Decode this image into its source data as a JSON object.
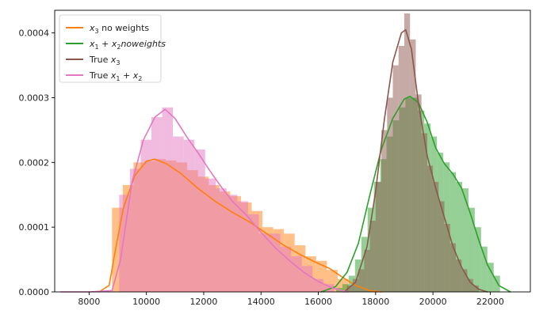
{
  "chart_data": {
    "type": "area",
    "title": "",
    "xlabel": "",
    "ylabel": "",
    "xlim": [
      6800,
      23400
    ],
    "ylim": [
      0,
      0.000435
    ],
    "grid": false,
    "legend_placement": "top-left",
    "x_ticks": [
      {
        "value": 8000,
        "label": "8000"
      },
      {
        "value": 10000,
        "label": "10000"
      },
      {
        "value": 12000,
        "label": "12000"
      },
      {
        "value": 14000,
        "label": "14000"
      },
      {
        "value": 16000,
        "label": "16000"
      },
      {
        "value": 18000,
        "label": "18000"
      },
      {
        "value": 20000,
        "label": "20000"
      },
      {
        "value": 22000,
        "label": "22000"
      }
    ],
    "y_ticks": [
      {
        "value": 0,
        "label": "0.0000"
      },
      {
        "value": 0.0001,
        "label": "0.0001"
      },
      {
        "value": 0.0002,
        "label": "0.0002"
      },
      {
        "value": 0.0003,
        "label": "0.0003"
      },
      {
        "value": 0.0004,
        "label": "0.0004"
      }
    ],
    "series": [
      {
        "key": "x3_no_weights",
        "legend": {
          "pre": "x",
          "sub": "3",
          "post": " no weights",
          "italic": true
        },
        "color": "#ff7f0e",
        "hist_opacity": 0.5,
        "bin_width": 375,
        "hist": [
          [
            8800,
            0.00013
          ],
          [
            9175,
            0.000165
          ],
          [
            9550,
            0.0002
          ],
          [
            9925,
            0.000202
          ],
          [
            10300,
            0.000205
          ],
          [
            10675,
            0.000203
          ],
          [
            11050,
            0.0002
          ],
          [
            11425,
            0.000188
          ],
          [
            11800,
            0.000178
          ],
          [
            12175,
            0.000165
          ],
          [
            12550,
            0.000155
          ],
          [
            12925,
            0.000148
          ],
          [
            13300,
            0.000138
          ],
          [
            13675,
            0.000125
          ],
          [
            14050,
            0.0001
          ],
          [
            14425,
            9.7e-05
          ],
          [
            14800,
            9e-05
          ],
          [
            15175,
            7.2e-05
          ],
          [
            15550,
            5.5e-05
          ],
          [
            15925,
            4.8e-05
          ],
          [
            16300,
            3.4e-05
          ],
          [
            16675,
            2e-05
          ]
        ],
        "kde": [
          [
            8350,
            0.0
          ],
          [
            8700,
            1e-05
          ],
          [
            8900,
            6e-05
          ],
          [
            9200,
            0.00013
          ],
          [
            9600,
            0.00018
          ],
          [
            10000,
            0.000202
          ],
          [
            10300,
            0.000205
          ],
          [
            10700,
            0.000198
          ],
          [
            11200,
            0.000183
          ],
          [
            11800,
            0.00016
          ],
          [
            12400,
            0.00014
          ],
          [
            13000,
            0.000123
          ],
          [
            13600,
            0.000108
          ],
          [
            14200,
            9e-05
          ],
          [
            14800,
            7.2e-05
          ],
          [
            15400,
            5.7e-05
          ],
          [
            15900,
            4.6e-05
          ],
          [
            16400,
            3.6e-05
          ],
          [
            16800,
            2.4e-05
          ],
          [
            17300,
            1e-05
          ],
          [
            17800,
            2e-06
          ],
          [
            18200,
            0.0
          ]
        ]
      },
      {
        "key": "x1x2_no_weights",
        "legend": {
          "pre": "x",
          "sub": "1",
          "mid": " + x",
          "sub2": "2",
          "post": "noweights",
          "italic": true
        },
        "color": "#2ca02c",
        "hist_opacity": 0.5,
        "bin_width": 220,
        "hist": [
          [
            16620,
            6e-06
          ],
          [
            16840,
            1.2e-05
          ],
          [
            17060,
            2.5e-05
          ],
          [
            17280,
            5e-05
          ],
          [
            17500,
            8.5e-05
          ],
          [
            17720,
            0.00013
          ],
          [
            17940,
            0.00017
          ],
          [
            18160,
            0.000205
          ],
          [
            18380,
            0.00024
          ],
          [
            18600,
            0.000265
          ],
          [
            18820,
            0.000285
          ],
          [
            19040,
            0.0003
          ],
          [
            19260,
            0.0003
          ],
          [
            19480,
            0.00028
          ],
          [
            19700,
            0.00026
          ],
          [
            19920,
            0.00024
          ],
          [
            20140,
            0.000215
          ],
          [
            20360,
            0.0002
          ],
          [
            20580,
            0.000185
          ],
          [
            20800,
            0.00017
          ],
          [
            21020,
            0.00016
          ],
          [
            21240,
            0.00013
          ],
          [
            21460,
            0.0001
          ],
          [
            21680,
            7e-05
          ],
          [
            21900,
            4.5e-05
          ],
          [
            22120,
            2.5e-05
          ]
        ],
        "kde": [
          [
            16100,
            0.0
          ],
          [
            16600,
            8e-06
          ],
          [
            17000,
            3e-05
          ],
          [
            17400,
            7.5e-05
          ],
          [
            17800,
            0.00015
          ],
          [
            18200,
            0.00022
          ],
          [
            18600,
            0.000268
          ],
          [
            19000,
            0.000298
          ],
          [
            19200,
            0.000302
          ],
          [
            19500,
            0.000292
          ],
          [
            19800,
            0.000262
          ],
          [
            20100,
            0.000222
          ],
          [
            20400,
            0.000198
          ],
          [
            20700,
            0.000182
          ],
          [
            21000,
            0.00016
          ],
          [
            21300,
            0.000122
          ],
          [
            21600,
            8e-05
          ],
          [
            21900,
            4.2e-05
          ],
          [
            22300,
            1e-05
          ],
          [
            22700,
            0.0
          ]
        ]
      },
      {
        "key": "true_x3",
        "legend": {
          "pre": "True ",
          "math": "x",
          "sub": "3"
        },
        "color": "#8c564b",
        "hist_opacity": 0.5,
        "bin_width": 200,
        "hist": [
          [
            17000,
            1e-05
          ],
          [
            17200,
            2e-05
          ],
          [
            17400,
            3.5e-05
          ],
          [
            17600,
            6.5e-05
          ],
          [
            17800,
            0.00011
          ],
          [
            18000,
            0.00017
          ],
          [
            18200,
            0.00025
          ],
          [
            18400,
            0.0003
          ],
          [
            18600,
            0.00035
          ],
          [
            18800,
            0.00038
          ],
          [
            19000,
            0.00043
          ],
          [
            19200,
            0.00039
          ],
          [
            19400,
            0.000305
          ],
          [
            19600,
            0.000245
          ],
          [
            19800,
            0.000195
          ],
          [
            20000,
            0.00017
          ],
          [
            20200,
            0.00014
          ],
          [
            20400,
            0.000105
          ],
          [
            20600,
            7.5e-05
          ],
          [
            20800,
            5e-05
          ],
          [
            21000,
            3.5e-05
          ],
          [
            21200,
            2e-05
          ],
          [
            21400,
            1e-05
          ]
        ],
        "kde": [
          [
            16900,
            0.0
          ],
          [
            17300,
            1.5e-05
          ],
          [
            17700,
            7e-05
          ],
          [
            18000,
            0.000155
          ],
          [
            18300,
            0.000265
          ],
          [
            18600,
            0.000355
          ],
          [
            18900,
            0.0004
          ],
          [
            19050,
            0.000405
          ],
          [
            19250,
            0.000375
          ],
          [
            19500,
            0.00029
          ],
          [
            19800,
            0.00021
          ],
          [
            20100,
            0.00016
          ],
          [
            20400,
            0.000115
          ],
          [
            20700,
            7e-05
          ],
          [
            21000,
            3.8e-05
          ],
          [
            21300,
            1.5e-05
          ],
          [
            21600,
            4e-06
          ],
          [
            21900,
            0.0
          ]
        ]
      },
      {
        "key": "true_x1x2",
        "legend": {
          "pre": "True ",
          "math": "x",
          "sub": "1",
          "mid": " + x",
          "sub2": "2"
        },
        "color": "#e377c2",
        "hist_opacity": 0.5,
        "bin_width": 375,
        "hist": [
          [
            9050,
            0.00015
          ],
          [
            9425,
            0.00019
          ],
          [
            9800,
            0.000235
          ],
          [
            10175,
            0.00027
          ],
          [
            10550,
            0.000285
          ],
          [
            10925,
            0.00024
          ],
          [
            11300,
            0.000235
          ],
          [
            11675,
            0.00022
          ],
          [
            12050,
            0.000175
          ],
          [
            12425,
            0.00016
          ],
          [
            12800,
            0.00015
          ],
          [
            13175,
            0.00014
          ],
          [
            13550,
            0.00012
          ],
          [
            13925,
            9e-05
          ],
          [
            14300,
            9e-05
          ],
          [
            14675,
            7e-05
          ],
          [
            15050,
            5.5e-05
          ],
          [
            15425,
            4e-05
          ],
          [
            15800,
            2e-05
          ],
          [
            16175,
            1.2e-05
          ]
        ],
        "kde": [
          [
            7000,
            0.0
          ],
          [
            8000,
            0.0
          ],
          [
            8800,
            2e-06
          ],
          [
            9100,
            5e-05
          ],
          [
            9500,
            0.00017
          ],
          [
            9900,
            0.000235
          ],
          [
            10300,
            0.00027
          ],
          [
            10650,
            0.000282
          ],
          [
            11000,
            0.000268
          ],
          [
            11400,
            0.00024
          ],
          [
            11800,
            0.000215
          ],
          [
            12200,
            0.000188
          ],
          [
            12600,
            0.000163
          ],
          [
            13000,
            0.00014
          ],
          [
            13500,
            0.000118
          ],
          [
            14000,
            9.2e-05
          ],
          [
            14500,
            6.8e-05
          ],
          [
            15000,
            4.8e-05
          ],
          [
            15500,
            3e-05
          ],
          [
            16000,
            1.6e-05
          ],
          [
            16500,
            6e-06
          ],
          [
            17000,
            0.0
          ]
        ]
      }
    ]
  }
}
